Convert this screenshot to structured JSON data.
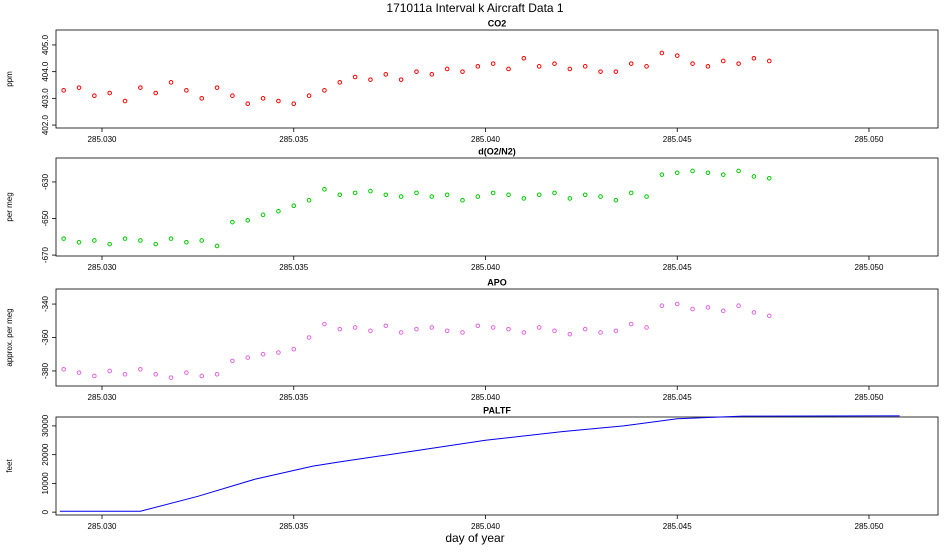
{
  "title": "171011a   Interval k Aircraft Data 1",
  "xlabel": "day of year",
  "chart_data": [
    {
      "type": "scatter",
      "title": "CO2",
      "ylabel": "ppm",
      "color": "#ff0000",
      "x": [
        285.029,
        285.0294,
        285.0298,
        285.0302,
        285.0306,
        285.031,
        285.0314,
        285.0318,
        285.0322,
        285.0326,
        285.033,
        285.0334,
        285.0338,
        285.0342,
        285.0346,
        285.035,
        285.0354,
        285.0358,
        285.0362,
        285.0366,
        285.037,
        285.0374,
        285.0378,
        285.0382,
        285.0386,
        285.039,
        285.0394,
        285.0398,
        285.0402,
        285.0406,
        285.041,
        285.0414,
        285.0418,
        285.0422,
        285.0426,
        285.043,
        285.0434,
        285.0438,
        285.0442,
        285.0446,
        285.045,
        285.0454,
        285.0458,
        285.0462,
        285.0466,
        285.047,
        285.0474
      ],
      "values": [
        403.3,
        403.4,
        403.1,
        403.2,
        402.9,
        403.4,
        403.2,
        403.6,
        403.3,
        403.0,
        403.4,
        403.1,
        402.8,
        403.0,
        402.9,
        402.8,
        403.1,
        403.3,
        403.6,
        403.8,
        403.7,
        403.9,
        403.7,
        404.0,
        403.9,
        404.1,
        404.0,
        404.2,
        404.3,
        404.1,
        404.5,
        404.2,
        404.3,
        404.1,
        404.2,
        404.0,
        404.0,
        404.3,
        404.2,
        404.7,
        404.6,
        404.3,
        404.2,
        404.4,
        404.3,
        404.5,
        404.4
      ],
      "xlim": [
        285.0288,
        285.0518
      ],
      "xticks": [
        {
          "value": 285.03,
          "label": "285.030"
        },
        {
          "value": 285.035,
          "label": "285.035"
        },
        {
          "value": 285.04,
          "label": "285.040"
        },
        {
          "value": 285.045,
          "label": "285.045"
        },
        {
          "value": 285.05,
          "label": "285.050"
        }
      ],
      "ylim": [
        401.89,
        405.56
      ],
      "yticks": [
        {
          "value": 402,
          "label": "402.0"
        },
        {
          "value": 403,
          "label": "403.0"
        },
        {
          "value": 404,
          "label": "404.0"
        },
        {
          "value": 405,
          "label": "405.0"
        }
      ]
    },
    {
      "type": "scatter",
      "title": "d(O2/N2)",
      "ylabel": "per meg",
      "color": "#00cc00",
      "x": [
        285.029,
        285.0294,
        285.0298,
        285.0302,
        285.0306,
        285.031,
        285.0314,
        285.0318,
        285.0322,
        285.0326,
        285.033,
        285.0334,
        285.0338,
        285.0342,
        285.0346,
        285.035,
        285.0354,
        285.0358,
        285.0362,
        285.0366,
        285.037,
        285.0374,
        285.0378,
        285.0382,
        285.0386,
        285.039,
        285.0394,
        285.0398,
        285.0402,
        285.0406,
        285.041,
        285.0414,
        285.0418,
        285.0422,
        285.0426,
        285.043,
        285.0434,
        285.0438,
        285.0442,
        285.0446,
        285.045,
        285.0454,
        285.0458,
        285.0462,
        285.0466,
        285.047,
        285.0474
      ],
      "values": [
        -661,
        -663,
        -662,
        -664,
        -661,
        -662,
        -664,
        -661,
        -663,
        -662,
        -665,
        -652,
        -651,
        -648,
        -646,
        -643,
        -640,
        -634,
        -637,
        -636,
        -635,
        -637,
        -638,
        -636,
        -638,
        -637,
        -640,
        -638,
        -636,
        -637,
        -639,
        -637,
        -636,
        -639,
        -637,
        -638,
        -640,
        -636,
        -638,
        -626,
        -625,
        -624,
        -625,
        -626,
        -624,
        -627,
        -628
      ],
      "xlim": [
        285.0288,
        285.0518
      ],
      "xticks": [
        {
          "value": 285.03,
          "label": "285.030"
        },
        {
          "value": 285.035,
          "label": "285.035"
        },
        {
          "value": 285.04,
          "label": "285.040"
        },
        {
          "value": 285.045,
          "label": "285.045"
        },
        {
          "value": 285.05,
          "label": "285.050"
        }
      ],
      "ylim": [
        -670.5,
        -616.9
      ],
      "yticks": [
        -670,
        -650,
        -630
      ]
    },
    {
      "type": "scatter",
      "title": "APO",
      "ylabel": "approx. per meg",
      "color": "#e066e0",
      "x": [
        285.029,
        285.0294,
        285.0298,
        285.0302,
        285.0306,
        285.031,
        285.0314,
        285.0318,
        285.0322,
        285.0326,
        285.033,
        285.0334,
        285.0338,
        285.0342,
        285.0346,
        285.035,
        285.0354,
        285.0358,
        285.0362,
        285.0366,
        285.037,
        285.0374,
        285.0378,
        285.0382,
        285.0386,
        285.039,
        285.0394,
        285.0398,
        285.0402,
        285.0406,
        285.041,
        285.0414,
        285.0418,
        285.0422,
        285.0426,
        285.043,
        285.0434,
        285.0438,
        285.0442,
        285.0446,
        285.045,
        285.0454,
        285.0458,
        285.0462,
        285.0466,
        285.047,
        285.0474
      ],
      "values": [
        -379,
        -381,
        -383,
        -380,
        -382,
        -379,
        -382,
        -384,
        -381,
        -383,
        -382,
        -374,
        -372,
        -370,
        -369,
        -367,
        -360,
        -352,
        -355,
        -354,
        -356,
        -353,
        -357,
        -355,
        -354,
        -356,
        -357,
        -353,
        -354,
        -355,
        -357,
        -354,
        -356,
        -358,
        -355,
        -357,
        -356,
        -352,
        -354,
        -341,
        -340,
        -343,
        -342,
        -344,
        -341,
        -345,
        -347
      ],
      "xlim": [
        285.0288,
        285.0518
      ],
      "xticks": [
        {
          "value": 285.03,
          "label": "285.030"
        },
        {
          "value": 285.035,
          "label": "285.035"
        },
        {
          "value": 285.04,
          "label": "285.040"
        },
        {
          "value": 285.045,
          "label": "285.045"
        },
        {
          "value": 285.05,
          "label": "285.050"
        }
      ],
      "ylim": [
        -389,
        -331
      ],
      "yticks": [
        -380,
        -360,
        -340
      ]
    },
    {
      "type": "line",
      "title": "PALTF",
      "ylabel": "feet",
      "color": "#0000ee",
      "x": [
        285.0289,
        285.031,
        285.0325,
        285.034,
        285.0355,
        285.0362,
        285.038,
        285.04,
        285.042,
        285.0436,
        285.045,
        285.0467,
        285.0508
      ],
      "values": [
        300,
        300,
        5500,
        11500,
        16000,
        17500,
        21000,
        25000,
        28000,
        30000,
        32500,
        33400,
        33500
      ],
      "xlim": [
        285.0288,
        285.0518
      ],
      "xticks": [
        {
          "value": 285.03,
          "label": "285.030"
        },
        {
          "value": 285.035,
          "label": "285.035"
        },
        {
          "value": 285.04,
          "label": "285.040"
        },
        {
          "value": 285.045,
          "label": "285.045"
        },
        {
          "value": 285.05,
          "label": "285.050"
        }
      ],
      "ylim": [
        -1000,
        33100
      ],
      "yticks": [
        0,
        10000,
        20000,
        30000
      ]
    }
  ]
}
